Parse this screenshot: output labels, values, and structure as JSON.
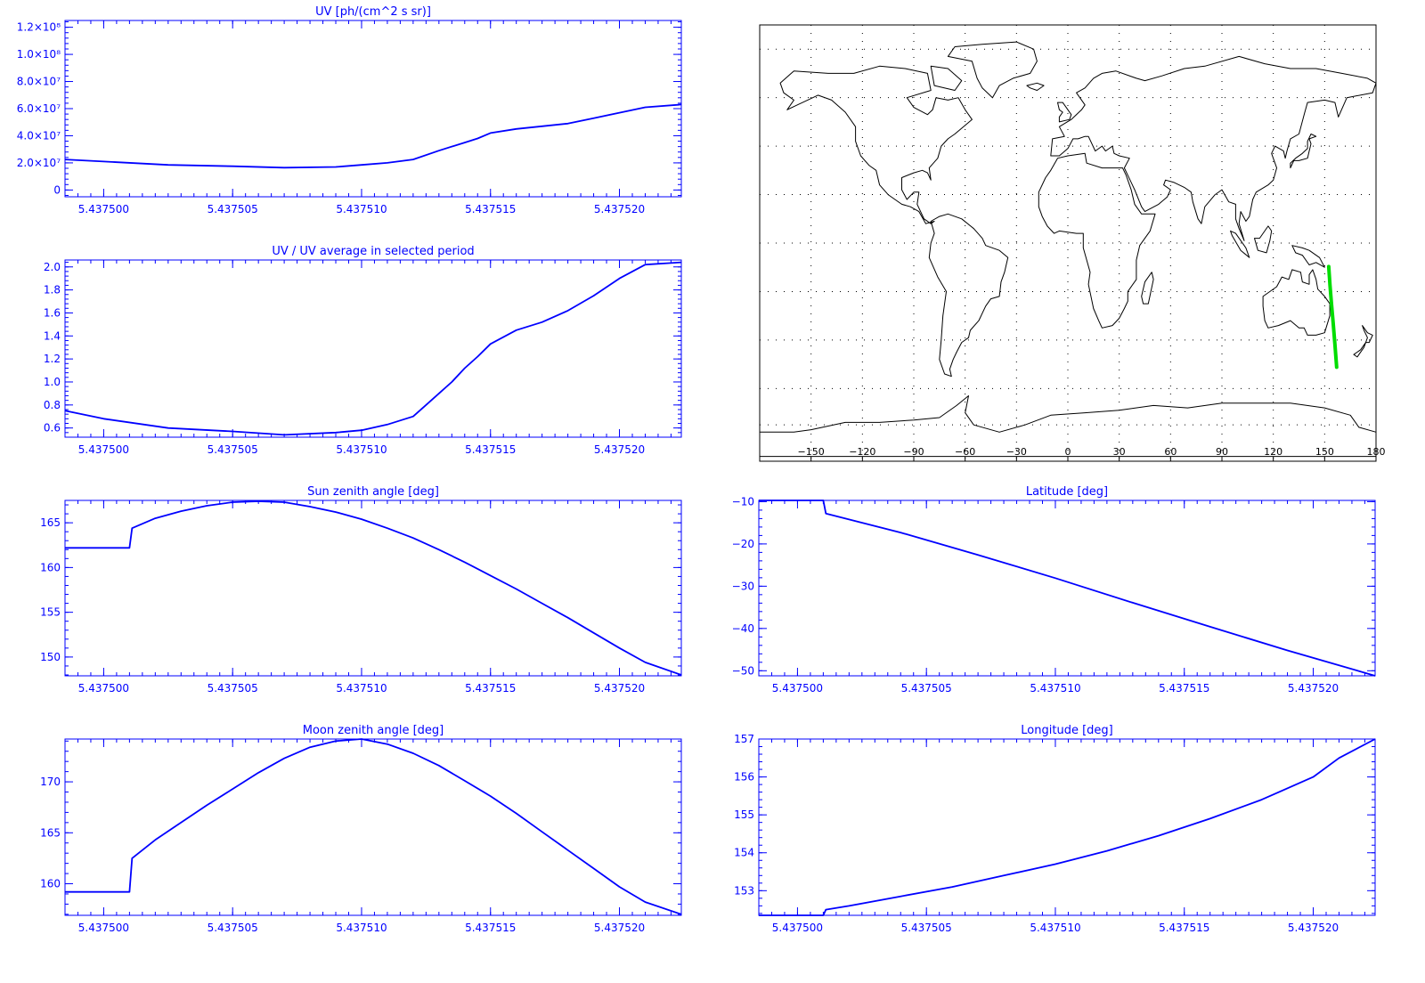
{
  "chart_data": [
    {
      "id": "uv",
      "type": "line",
      "title": "UV [ph/(cm^2 s sr)]",
      "xlabel": "",
      "ylabel": "",
      "xlim": [
        5.4374985,
        5.4375224
      ],
      "ylim": [
        -5000000,
        125000000
      ],
      "xticks": [
        5.4375,
        5.437505,
        5.43751,
        5.437515,
        5.43752
      ],
      "xtick_labels": [
        "5.437500",
        "5.437505",
        "5.437510",
        "5.437515",
        "5.437520"
      ],
      "yticks": [
        0,
        20000000,
        40000000,
        60000000,
        80000000,
        100000000,
        120000000
      ],
      "ytick_labels": [
        "0",
        "2.0×10⁷",
        "4.0×10⁷",
        "6.0×10⁷",
        "8.0×10⁷",
        "1.0×10⁸",
        "1.2×10⁸"
      ],
      "color": "#0000ff",
      "x": [
        5.4374985,
        5.4375,
        5.4375025,
        5.437505,
        5.437507,
        5.437509,
        5.43751,
        5.437511,
        5.437512,
        5.437513,
        5.437514,
        5.4375145,
        5.437515,
        5.437516,
        5.437517,
        5.437518,
        5.437519,
        5.43752,
        5.437521,
        5.4375224
      ],
      "y": [
        22500000,
        21000000,
        18500000,
        17500000,
        16500000,
        17000000,
        18500000,
        20000000,
        22500000,
        29000000,
        35000000,
        38000000,
        42000000,
        45000000,
        47000000,
        49000000,
        53000000,
        57000000,
        61000000,
        63000000
      ]
    },
    {
      "id": "uv_ratio",
      "type": "line",
      "title": "UV / UV average in selected period",
      "xlabel": "",
      "ylabel": "",
      "xlim": [
        5.4374985,
        5.4375224
      ],
      "ylim": [
        0.52,
        2.06
      ],
      "xticks": [
        5.4375,
        5.437505,
        5.43751,
        5.437515,
        5.43752
      ],
      "xtick_labels": [
        "5.437500",
        "5.437505",
        "5.437510",
        "5.437515",
        "5.437520"
      ],
      "yticks": [
        0.6,
        0.8,
        1.0,
        1.2,
        1.4,
        1.6,
        1.8,
        2.0
      ],
      "ytick_labels": [
        "0.6",
        "0.8",
        "1.0",
        "1.2",
        "1.4",
        "1.6",
        "1.8",
        "2.0"
      ],
      "color": "#0000ff",
      "x": [
        5.4374985,
        5.4375,
        5.4375025,
        5.437505,
        5.437507,
        5.437509,
        5.43751,
        5.437511,
        5.437512,
        5.4375125,
        5.437513,
        5.4375135,
        5.437514,
        5.4375145,
        5.437515,
        5.437516,
        5.437517,
        5.437518,
        5.437519,
        5.43752,
        5.437521,
        5.4375224
      ],
      "y": [
        0.75,
        0.68,
        0.6,
        0.57,
        0.54,
        0.56,
        0.58,
        0.63,
        0.7,
        0.8,
        0.9,
        1.0,
        1.12,
        1.22,
        1.33,
        1.45,
        1.52,
        1.62,
        1.75,
        1.9,
        2.02,
        2.04
      ]
    },
    {
      "id": "sun_zenith",
      "type": "line",
      "title": "Sun zenith angle [deg]",
      "xlabel": "",
      "ylabel": "",
      "xlim": [
        5.4374985,
        5.4375224
      ],
      "ylim": [
        147.9,
        167.5
      ],
      "xticks": [
        5.4375,
        5.437505,
        5.43751,
        5.437515,
        5.43752
      ],
      "xtick_labels": [
        "5.437500",
        "5.437505",
        "5.437510",
        "5.437515",
        "5.437520"
      ],
      "yticks": [
        150,
        155,
        160,
        165
      ],
      "ytick_labels": [
        "150",
        "155",
        "160",
        "165"
      ],
      "color": "#0000ff",
      "x": [
        5.4374985,
        5.437501,
        5.4375011,
        5.437502,
        5.437503,
        5.437504,
        5.437505,
        5.437506,
        5.437507,
        5.437508,
        5.437509,
        5.43751,
        5.437511,
        5.437512,
        5.437513,
        5.437514,
        5.437515,
        5.437516,
        5.437517,
        5.437518,
        5.437519,
        5.43752,
        5.437521,
        5.4375224
      ],
      "y": [
        162.2,
        162.2,
        164.4,
        165.5,
        166.3,
        166.9,
        167.3,
        167.4,
        167.3,
        166.8,
        166.2,
        165.4,
        164.4,
        163.3,
        162.0,
        160.6,
        159.1,
        157.6,
        156.0,
        154.4,
        152.7,
        151.0,
        149.4,
        148.0
      ]
    },
    {
      "id": "moon_zenith",
      "type": "line",
      "title": "Moon zenith angle [deg]",
      "xlabel": "",
      "ylabel": "",
      "xlim": [
        5.4374985,
        5.4375224
      ],
      "ylim": [
        156.9,
        174.2
      ],
      "xticks": [
        5.4375,
        5.437505,
        5.43751,
        5.437515,
        5.43752
      ],
      "xtick_labels": [
        "5.437500",
        "5.437505",
        "5.437510",
        "5.437515",
        "5.437520"
      ],
      "yticks": [
        160,
        165,
        170
      ],
      "ytick_labels": [
        "160",
        "165",
        "170"
      ],
      "color": "#0000ff",
      "x": [
        5.4374985,
        5.437501,
        5.4375011,
        5.437502,
        5.437503,
        5.437504,
        5.437505,
        5.437506,
        5.437507,
        5.437508,
        5.437509,
        5.43751,
        5.437511,
        5.437512,
        5.437513,
        5.437514,
        5.437515,
        5.437516,
        5.437517,
        5.437518,
        5.437519,
        5.43752,
        5.437521,
        5.4375224
      ],
      "y": [
        159.2,
        159.2,
        162.5,
        164.3,
        166.0,
        167.7,
        169.3,
        170.9,
        172.3,
        173.4,
        174.0,
        174.2,
        173.7,
        172.8,
        171.6,
        170.1,
        168.6,
        166.9,
        165.1,
        163.3,
        161.5,
        159.7,
        158.2,
        157.0
      ]
    },
    {
      "id": "latitude",
      "type": "line",
      "title": "Latitude [deg]",
      "xlabel": "",
      "ylabel": "",
      "xlim": [
        5.4374985,
        5.4375224
      ],
      "ylim": [
        -51.2,
        -9.7
      ],
      "xticks": [
        5.4375,
        5.437505,
        5.43751,
        5.437515,
        5.43752
      ],
      "xtick_labels": [
        "5.437500",
        "5.437505",
        "5.437510",
        "5.437515",
        "5.437520"
      ],
      "yticks": [
        -50,
        -40,
        -30,
        -20,
        -10
      ],
      "ytick_labels": [
        "−50",
        "−40",
        "−30",
        "−20",
        "−10"
      ],
      "color": "#0000ff",
      "x": [
        5.4374985,
        5.437501,
        5.4375011,
        5.437504,
        5.437507,
        5.43751,
        5.437513,
        5.437516,
        5.437519,
        5.4375224
      ],
      "y": [
        -9.7,
        -9.7,
        -12.8,
        -17.3,
        -22.6,
        -28.1,
        -33.9,
        -39.6,
        -45.2,
        -51.2
      ]
    },
    {
      "id": "longitude",
      "type": "line",
      "title": "Longitude [deg]",
      "xlabel": "",
      "ylabel": "",
      "xlim": [
        5.4374985,
        5.4375224
      ],
      "ylim": [
        152.35,
        157.0
      ],
      "xticks": [
        5.4375,
        5.437505,
        5.43751,
        5.437515,
        5.43752
      ],
      "xtick_labels": [
        "5.437500",
        "5.437505",
        "5.437510",
        "5.437515",
        "5.437520"
      ],
      "yticks": [
        153,
        154,
        155,
        156,
        157
      ],
      "ytick_labels": [
        "153",
        "154",
        "155",
        "156",
        "157"
      ],
      "color": "#0000ff",
      "x": [
        5.4374985,
        5.437501,
        5.4375011,
        5.437502,
        5.437504,
        5.437506,
        5.437508,
        5.43751,
        5.437512,
        5.437514,
        5.437516,
        5.437518,
        5.43752,
        5.437521,
        5.4375224
      ],
      "y": [
        152.35,
        152.35,
        152.5,
        152.6,
        152.85,
        153.1,
        153.4,
        153.7,
        154.05,
        154.45,
        154.9,
        155.4,
        156.0,
        156.5,
        157.0
      ]
    }
  ],
  "map": {
    "xticks": [
      -150,
      -120,
      -90,
      -60,
      -30,
      0,
      30,
      60,
      90,
      120,
      150,
      180
    ],
    "xtick_labels": [
      "−150",
      "−120",
      "−90",
      "−60",
      "−30",
      "0",
      "30",
      "60",
      "90",
      "120",
      "150",
      "180"
    ],
    "lon_range": [
      -180,
      180
    ],
    "lat_range": [
      -90,
      90
    ],
    "grid_lat": [
      -75,
      -60,
      -40,
      -20,
      0,
      20,
      40,
      60,
      80
    ],
    "track": {
      "color": "#00dd00",
      "lon": [
        152.35,
        153.1,
        154.0,
        155.0,
        156.0,
        157.0
      ],
      "lat": [
        -9.7,
        -17.3,
        -25.0,
        -33.0,
        -42.0,
        -51.2
      ]
    }
  }
}
